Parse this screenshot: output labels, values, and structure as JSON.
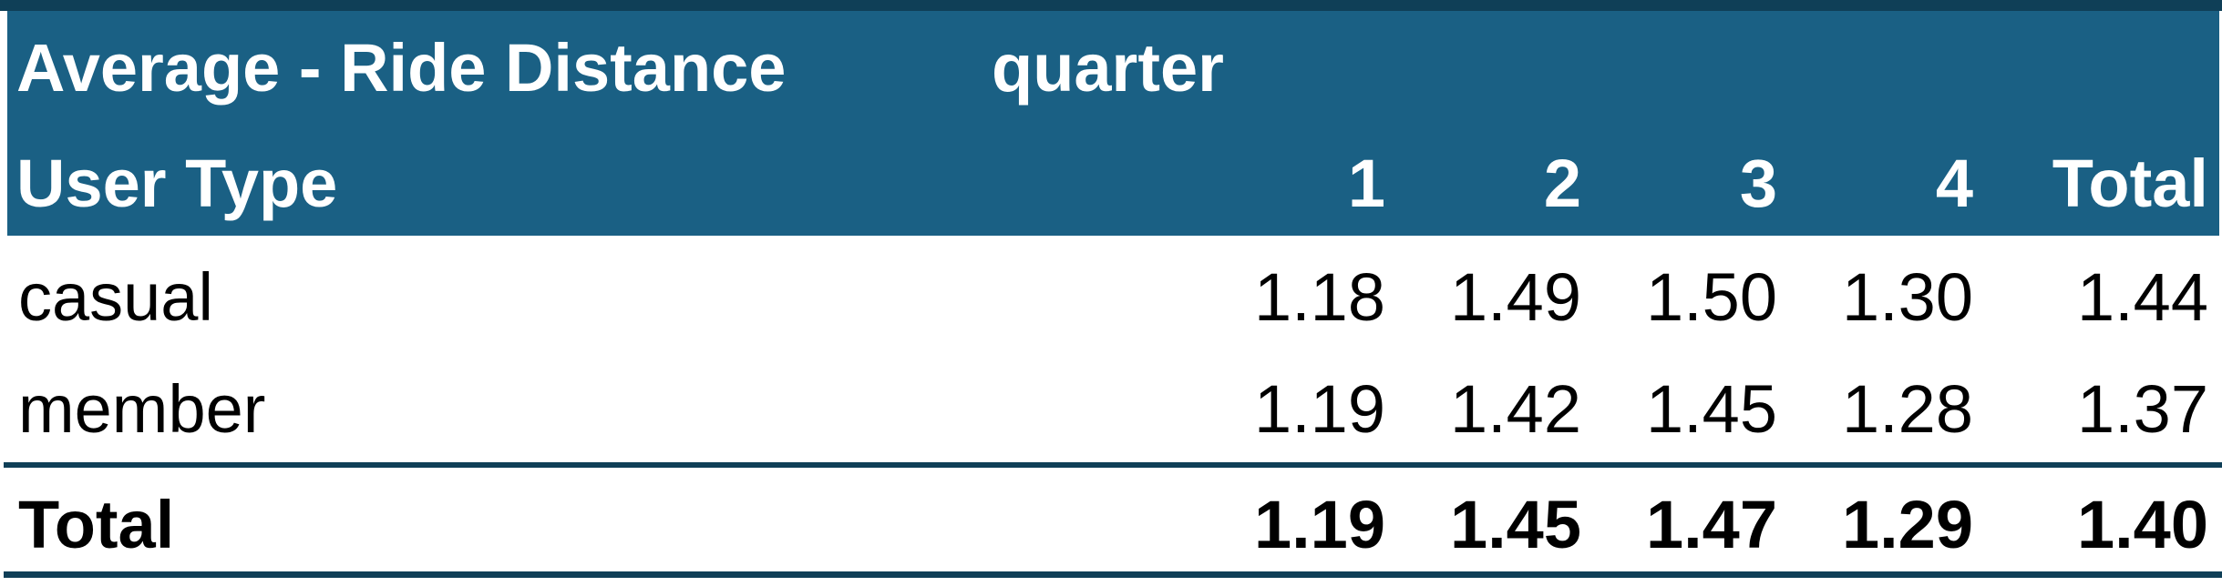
{
  "pivot": {
    "measure_label": "Average - Ride Distance",
    "column_field_label": "quarter",
    "row_field_label": "User Type",
    "column_headers": [
      "1",
      "2",
      "3",
      "4",
      "Total"
    ],
    "rows": [
      {
        "label": "casual",
        "values": [
          "1.18",
          "1.49",
          "1.50",
          "1.30",
          "1.44"
        ]
      },
      {
        "label": "member",
        "values": [
          "1.19",
          "1.42",
          "1.45",
          "1.28",
          "1.37"
        ]
      }
    ],
    "grand_total": {
      "label": "Total",
      "values": [
        "1.19",
        "1.45",
        "1.47",
        "1.29",
        "1.40"
      ]
    },
    "colors": {
      "header_fill": "#1a6084",
      "border": "#0f3f57",
      "header_text": "#ffffff",
      "body_text": "#000000"
    }
  }
}
